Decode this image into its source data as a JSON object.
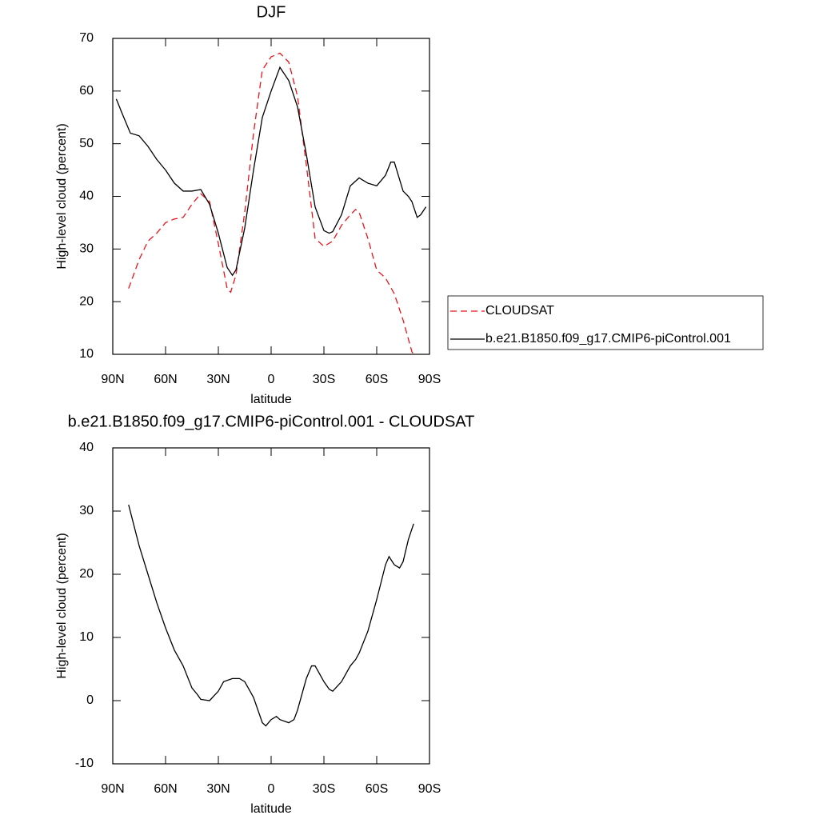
{
  "chart_data": [
    {
      "type": "line",
      "title": "DJF",
      "xlabel": "latitude",
      "ylabel": "High-level cloud (percent)",
      "xlim": [
        90,
        -90
      ],
      "ylim": [
        10,
        70
      ],
      "xticks": [
        {
          "value": 90,
          "label": "90N"
        },
        {
          "value": 60,
          "label": "60N"
        },
        {
          "value": 30,
          "label": "30N"
        },
        0,
        {
          "value": -30,
          "label": "30S"
        },
        {
          "value": -60,
          "label": "60S"
        },
        {
          "value": -90,
          "label": "90S"
        }
      ],
      "yticks": [
        10,
        20,
        30,
        40,
        50,
        60,
        70
      ],
      "legend": "right",
      "series": [
        {
          "name": "CLOUDSAT",
          "color": "#e8141c",
          "dash": true,
          "x": [
            81,
            75,
            70,
            65,
            60,
            55,
            50,
            45,
            40,
            35,
            30,
            25,
            23,
            20,
            15,
            10,
            5,
            0,
            -5,
            -10,
            -15,
            -20,
            -25,
            -30,
            -35,
            -40,
            -45,
            -48,
            -50,
            -55,
            -60,
            -65,
            -70,
            -75,
            -80,
            -81
          ],
          "values": [
            22.5,
            28,
            31.5,
            33,
            35,
            35.7,
            36,
            38.5,
            40.5,
            39,
            31,
            22.5,
            21.8,
            25,
            37,
            52,
            64,
            66.5,
            67.2,
            65.5,
            59,
            46,
            32,
            30.5,
            31.5,
            34.5,
            36.5,
            37.5,
            37,
            32,
            26,
            24.5,
            21.5,
            16.5,
            10.5,
            10
          ]
        },
        {
          "name": "b.e21.B1850.f09_g17.CMIP6-piControl.001",
          "color": "#000000",
          "dash": false,
          "x": [
            88,
            85,
            80,
            75,
            70,
            65,
            60,
            55,
            50,
            45,
            40,
            35,
            30,
            25,
            22,
            20,
            15,
            10,
            5,
            0,
            -5,
            -10,
            -15,
            -20,
            -25,
            -30,
            -33,
            -35,
            -40,
            -45,
            -50,
            -55,
            -60,
            -65,
            -68,
            -70,
            -75,
            -78,
            -80,
            -83,
            -85,
            -88
          ],
          "values": [
            58.5,
            56,
            52,
            51.5,
            49.5,
            47,
            45,
            42.5,
            41,
            41,
            41.3,
            38.5,
            33,
            26.5,
            25,
            26,
            34,
            45,
            55,
            60,
            64.5,
            62,
            57,
            48,
            38,
            33.5,
            33,
            33.3,
            36.5,
            42,
            43.5,
            42.5,
            42,
            44,
            46.5,
            46.5,
            41,
            40,
            39,
            36,
            36.5,
            38
          ]
        }
      ]
    },
    {
      "type": "line",
      "title": "b.e21.B1850.f09_g17.CMIP6-piControl.001 - CLOUDSAT",
      "xlabel": "latitude",
      "ylabel": "High-level cloud (percent)",
      "xlim": [
        90,
        -90
      ],
      "ylim": [
        -10,
        40
      ],
      "xticks": [
        {
          "value": 90,
          "label": "90N"
        },
        {
          "value": 60,
          "label": "60N"
        },
        {
          "value": 30,
          "label": "30N"
        },
        0,
        {
          "value": -30,
          "label": "30S"
        },
        {
          "value": -60,
          "label": "60S"
        },
        {
          "value": -90,
          "label": "90S"
        }
      ],
      "yticks": [
        -10,
        0,
        10,
        20,
        30,
        40
      ],
      "series": [
        {
          "color": "#000000",
          "dash": false,
          "x": [
            81,
            75,
            70,
            65,
            60,
            55,
            50,
            45,
            42,
            40,
            35,
            30,
            27,
            22,
            18,
            15,
            10,
            5,
            3,
            0,
            -3,
            -5,
            -10,
            -13,
            -15,
            -20,
            -23,
            -25,
            -30,
            -33,
            -35,
            -40,
            -45,
            -48,
            -50,
            -55,
            -60,
            -65,
            -67,
            -70,
            -73,
            -75,
            -78,
            -81
          ],
          "values": [
            31,
            24.5,
            20,
            15.5,
            11.5,
            8,
            5.5,
            2,
            1,
            0.2,
            0,
            1.5,
            3,
            3.5,
            3.5,
            3,
            0.5,
            -3.5,
            -4,
            -3,
            -2.5,
            -3,
            -3.5,
            -3,
            -1.5,
            3.5,
            5.5,
            5.5,
            3,
            1.8,
            1.5,
            3,
            5.5,
            6.5,
            7.5,
            11,
            16,
            21.5,
            22.8,
            21.5,
            21,
            22,
            25.5,
            28
          ]
        }
      ]
    }
  ]
}
